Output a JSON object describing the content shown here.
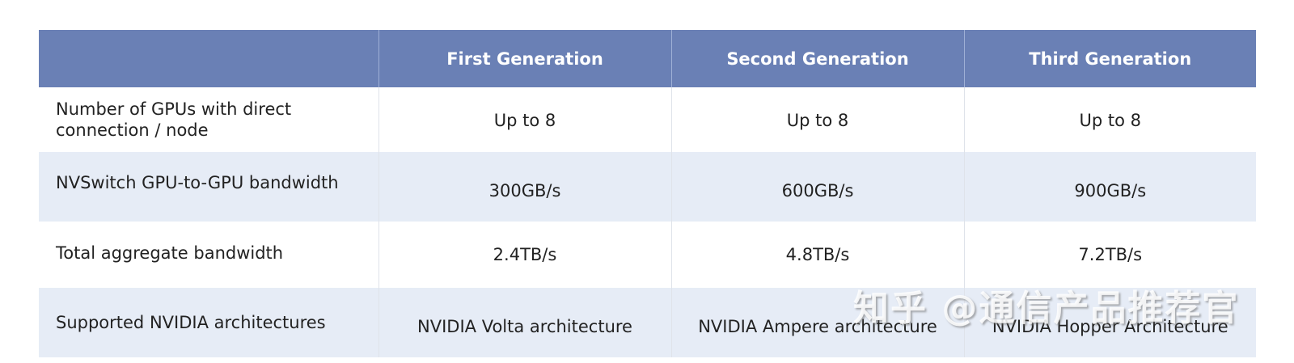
{
  "table": {
    "headers": [
      "",
      "First Generation",
      "Second Generation",
      "Third Generation"
    ],
    "rows": [
      {
        "label": "Number of GPUs with direct connection / node",
        "values": [
          "Up to 8",
          "Up to 8",
          "Up to 8"
        ]
      },
      {
        "label": "NVSwitch GPU-to-GPU bandwidth",
        "values": [
          "300GB/s",
          "600GB/s",
          "900GB/s"
        ]
      },
      {
        "label": "Total aggregate bandwidth",
        "values": [
          "2.4TB/s",
          "4.8TB/s",
          "7.2TB/s"
        ]
      },
      {
        "label": "Supported NVIDIA architectures",
        "values": [
          "NVIDIA Volta architecture",
          "NVIDIA Ampere architecture",
          "NVIDIA Hopper Architecture"
        ]
      }
    ]
  },
  "watermark": {
    "text": "知乎 @通信产品推荐官"
  },
  "colors": {
    "header_bg": "#6a80b5",
    "header_text": "#ffffff",
    "alt_row_bg": "#e6ecf6",
    "text": "#222222"
  }
}
